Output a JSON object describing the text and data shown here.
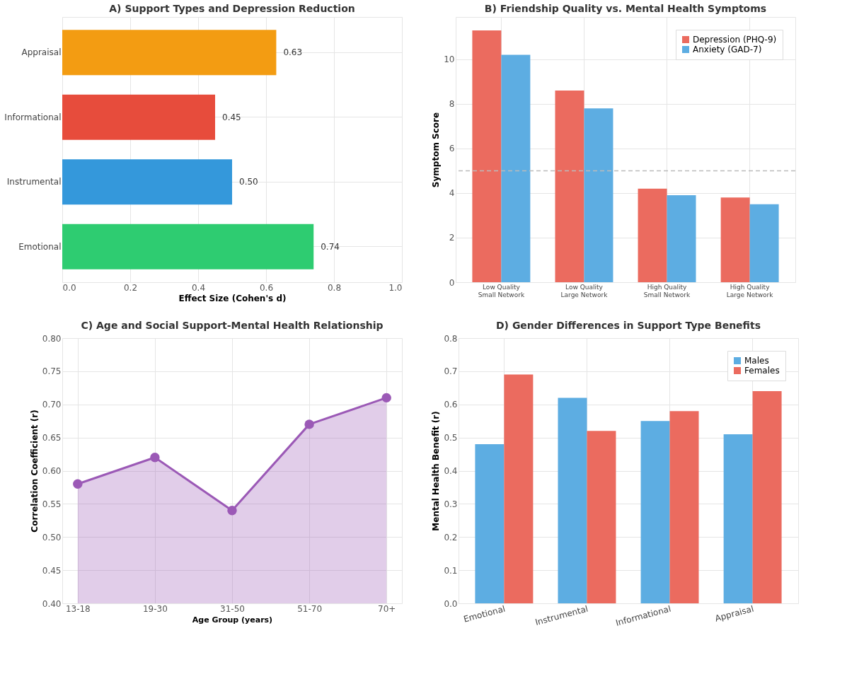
{
  "chart_data": [
    {
      "type": "bar",
      "orientation": "horizontal",
      "title": "A) Support Types and Depression Reduction",
      "xlabel": "Effect Size (Cohen's d)",
      "categories": [
        "Appraisal",
        "Informational",
        "Instrumental",
        "Emotional"
      ],
      "values": [
        0.63,
        0.45,
        0.5,
        0.74
      ],
      "colors": [
        "#f39c12",
        "#e74c3c",
        "#3498db",
        "#2ecc71"
      ],
      "value_labels": [
        "0.63",
        "0.45",
        "0.50",
        "0.74"
      ],
      "xlim": [
        0,
        1
      ],
      "xticks": [
        {
          "value": 0,
          "label": "0.0"
        },
        0.2,
        0.4,
        0.6,
        0.8,
        {
          "value": 1,
          "label": "1.0"
        }
      ],
      "grid": true
    },
    {
      "type": "bar",
      "title": "B) Friendship Quality vs. Mental Health Symptoms",
      "ylabel": "Symptom Score",
      "categories": [
        "Low Quality\nSmall Network",
        "Low Quality\nLarge Network",
        "High Quality\nSmall Network",
        "High Quality\nLarge Network"
      ],
      "series": [
        {
          "name": "Depression (PHQ-9)",
          "color": "#eb6b5f",
          "values": [
            11.3,
            8.6,
            4.2,
            3.8
          ]
        },
        {
          "name": "Anxiety (GAD-7)",
          "color": "#5dade2",
          "values": [
            10.2,
            7.8,
            3.9,
            3.5
          ]
        }
      ],
      "ylim": [
        0,
        11.9
      ],
      "yticks": [
        0,
        2,
        4,
        6,
        8,
        10
      ],
      "grid": true,
      "legend": "top right",
      "ref_lines": [
        {
          "axis": "y",
          "value": 5,
          "color": "#bbbbbb",
          "line_style": "dashed"
        }
      ]
    },
    {
      "type": "area",
      "title": "C) Age and Social Support-Mental Health Relationship",
      "xlabel": "Age Group (years)",
      "ylabel": "Correlation Coefficient (r)",
      "categories": [
        "13-18",
        "19-30",
        "31-50",
        "51-70",
        "70+"
      ],
      "series": [
        {
          "color": "#9b59b6",
          "values": [
            0.58,
            0.62,
            0.54,
            0.67,
            0.71
          ]
        }
      ],
      "ylim": [
        0.4,
        0.8
      ],
      "yticks": [
        {
          "value": 0.4,
          "label": "0.40"
        },
        0.45,
        {
          "value": 0.5,
          "label": "0.50"
        },
        0.55,
        {
          "value": 0.6,
          "label": "0.60"
        },
        0.65,
        {
          "value": 0.7,
          "label": "0.70"
        },
        0.75,
        {
          "value": 0.8,
          "label": "0.80"
        }
      ],
      "grid": true,
      "marker": "circle"
    },
    {
      "type": "bar",
      "title": "D) Gender Differences in Support Type Benefits",
      "ylabel": "Mental Health Benefit (r)",
      "categories": [
        "Emotional",
        "Instrumental",
        "Informational",
        "Appraisal"
      ],
      "series": [
        {
          "name": "Males",
          "color": "#5dade2",
          "values": [
            0.48,
            0.62,
            0.55,
            0.51
          ]
        },
        {
          "name": "Females",
          "color": "#eb6b5f",
          "values": [
            0.69,
            0.52,
            0.58,
            0.64
          ]
        }
      ],
      "ylim": [
        0,
        0.8
      ],
      "yticks": [
        {
          "value": 0,
          "label": "0.0"
        },
        0.1,
        0.2,
        0.3,
        0.4,
        0.5,
        0.6,
        0.7,
        0.8
      ],
      "grid": true,
      "legend": "top right"
    }
  ]
}
